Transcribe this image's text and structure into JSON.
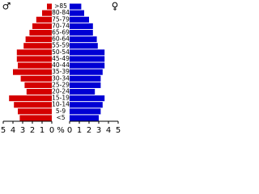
{
  "chart_data": {
    "type": "pyramid",
    "categories": [
      ">85",
      "80-84",
      "75-79",
      "70-74",
      "65-69",
      "60-64",
      "55-59",
      "50-54",
      "45-49",
      "40-44",
      "35-39",
      "30-34",
      "25-29",
      "20-24",
      "15-19",
      "10-14",
      "5-9",
      "<5"
    ],
    "series": [
      {
        "name": "♂",
        "color": "#d40000",
        "values": [
          0.5,
          1.0,
          1.6,
          2.0,
          2.3,
          2.7,
          2.9,
          3.6,
          3.6,
          3.5,
          4.0,
          3.2,
          2.8,
          2.6,
          4.4,
          3.9,
          3.5,
          3.3
        ]
      },
      {
        "name": "♀",
        "color": "#0000d4",
        "values": [
          1.2,
          1.5,
          2.0,
          2.4,
          2.4,
          2.8,
          2.9,
          3.6,
          3.6,
          3.6,
          3.4,
          3.2,
          3.2,
          2.6,
          3.6,
          3.4,
          3.2,
          3.0
        ]
      }
    ],
    "xlim": [
      0,
      5
    ],
    "xticks": [
      0,
      1,
      2,
      3,
      4,
      5
    ],
    "xlabel": "%"
  }
}
